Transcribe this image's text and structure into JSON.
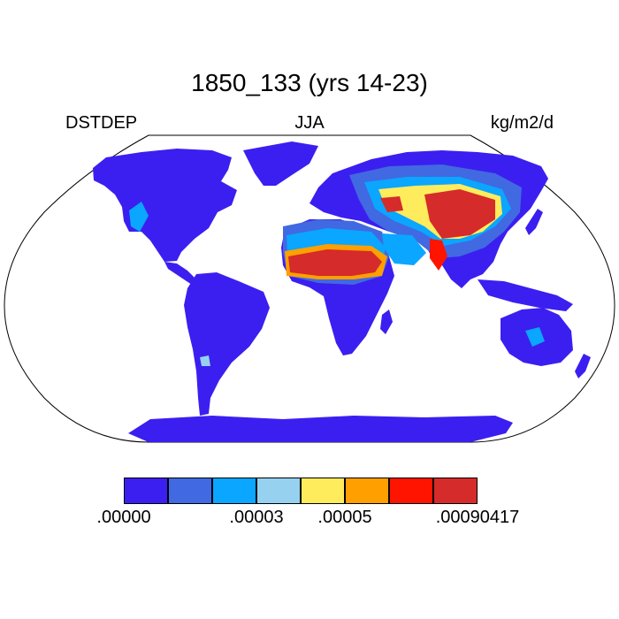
{
  "plot": {
    "title": "1850_133 (yrs 14-23)",
    "left_label": "DSTDEP",
    "center_label": "JJA",
    "right_label": "kg/m2/d"
  },
  "map": {
    "projection": "robinson",
    "land_base_color": "#3b1ff0",
    "ocean_color": "#ffffff",
    "boundary_color": "#000000"
  },
  "colorbar": {
    "colors": [
      "#3b1ff0",
      "#4169e1",
      "#0aa6ff",
      "#96d2f0",
      "#ffec5c",
      "#ff9f00",
      "#ff1400",
      "#d52b2b"
    ],
    "labels": [
      {
        "text": ".00000",
        "boundary": 0
      },
      {
        "text": ".00003",
        "boundary": 3
      },
      {
        "text": ".00005",
        "boundary": 4
      },
      {
        "text": ".00090417",
        "boundary": 7
      }
    ]
  }
}
